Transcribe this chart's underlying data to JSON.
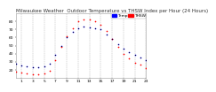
{
  "title": "Milwaukee Weather  Outdoor Temperature vs THSW Index per Hour (24 Hours)",
  "background_color": "#ffffff",
  "plot_bg_color": "#ffffff",
  "grid_color": "#aaaaaa",
  "blue_color": "#0000ff",
  "red_color": "#ff0000",
  "black_color": "#000000",
  "hours": [
    0,
    1,
    2,
    3,
    4,
    5,
    6,
    7,
    8,
    9,
    10,
    11,
    12,
    13,
    14,
    15,
    16,
    17,
    18,
    19,
    20,
    21,
    22,
    23
  ],
  "temp_blue": [
    27,
    25,
    24,
    23,
    23,
    24,
    27,
    38,
    50,
    60,
    67,
    72,
    74,
    73,
    72,
    70,
    64,
    58,
    52,
    46,
    42,
    38,
    35,
    32
  ],
  "thsw_red": [
    18,
    16,
    15,
    14,
    14,
    15,
    19,
    32,
    48,
    62,
    72,
    80,
    83,
    82,
    80,
    76,
    68,
    58,
    48,
    40,
    34,
    29,
    26,
    22
  ],
  "xlim": [
    0,
    23
  ],
  "ylim": [
    10,
    90
  ],
  "ytick_vals": [
    20,
    30,
    40,
    50,
    60,
    70,
    80
  ],
  "ytick_labels": [
    "20",
    "30",
    "40",
    "50",
    "60",
    "70",
    "80"
  ],
  "xtick_vals": [
    1,
    3,
    5,
    7,
    9,
    11,
    13,
    15,
    17,
    19,
    21,
    23
  ],
  "xtick_labels": [
    "1",
    "3",
    "5",
    "7",
    "9",
    "11",
    "13",
    "15",
    "17",
    "19",
    "21",
    "23"
  ],
  "legend_blue_label": "Temp",
  "legend_red_label": "THSW",
  "marker_size": 1.5,
  "title_fontsize": 4.0,
  "tick_fontsize": 3.2,
  "legend_fontsize": 3.2,
  "vgrid_hours": [
    1,
    3,
    5,
    7,
    9,
    11,
    13,
    15,
    17,
    19,
    21,
    23
  ]
}
